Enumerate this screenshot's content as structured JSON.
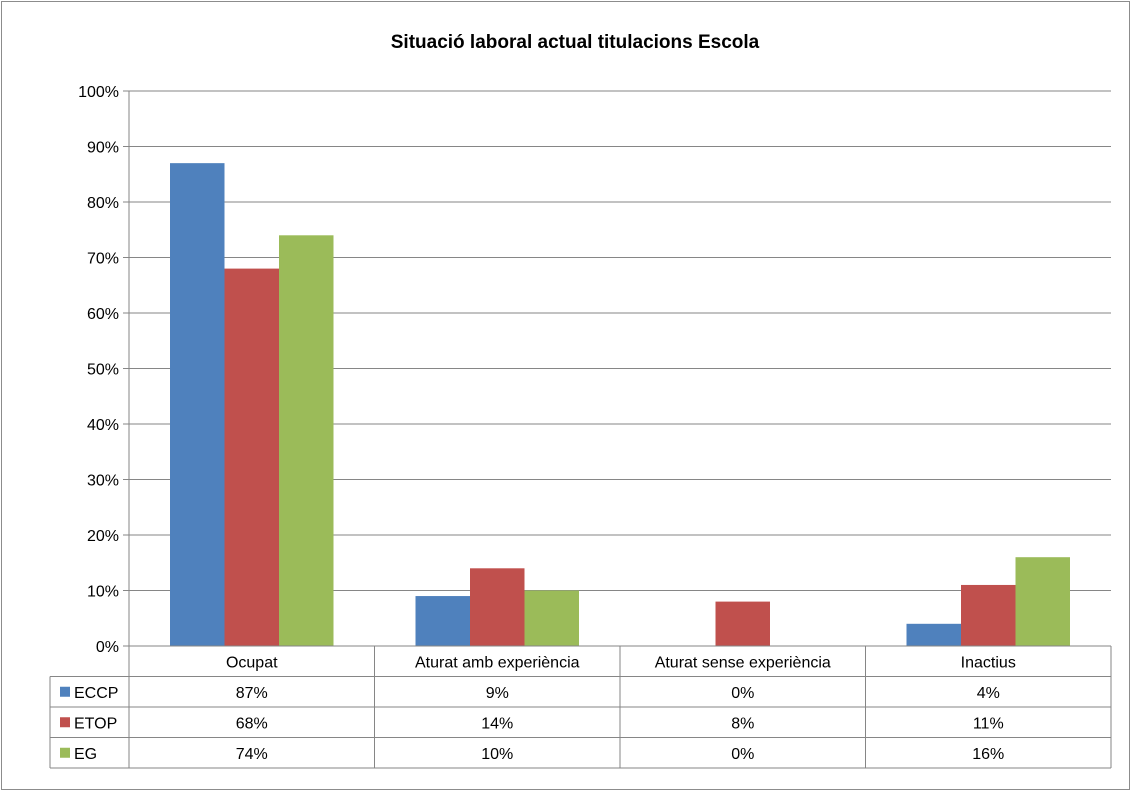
{
  "chart_data": {
    "type": "bar",
    "title": "Situació laboral actual titulacions Escola",
    "categories": [
      "Ocupat",
      "Aturat amb experiència",
      "Aturat sense experiència",
      "Inactius"
    ],
    "series": [
      {
        "name": "ECCP",
        "color": "#4F81BD",
        "values": [
          87,
          9,
          0,
          4
        ],
        "labels": [
          "87%",
          "9%",
          "0%",
          "4%"
        ]
      },
      {
        "name": "ETOP",
        "color": "#C0504D",
        "values": [
          68,
          14,
          8,
          11
        ],
        "labels": [
          "68%",
          "14%",
          "8%",
          "11%"
        ]
      },
      {
        "name": "EG",
        "color": "#9BBB59",
        "values": [
          74,
          10,
          0,
          16
        ],
        "labels": [
          "74%",
          "10%",
          "0%",
          "16%"
        ]
      }
    ],
    "yticks": [
      "0%",
      "10%",
      "20%",
      "30%",
      "40%",
      "50%",
      "60%",
      "70%",
      "80%",
      "90%",
      "100%"
    ],
    "ylim": [
      0,
      100
    ],
    "grid": true,
    "legend": "data-table"
  }
}
